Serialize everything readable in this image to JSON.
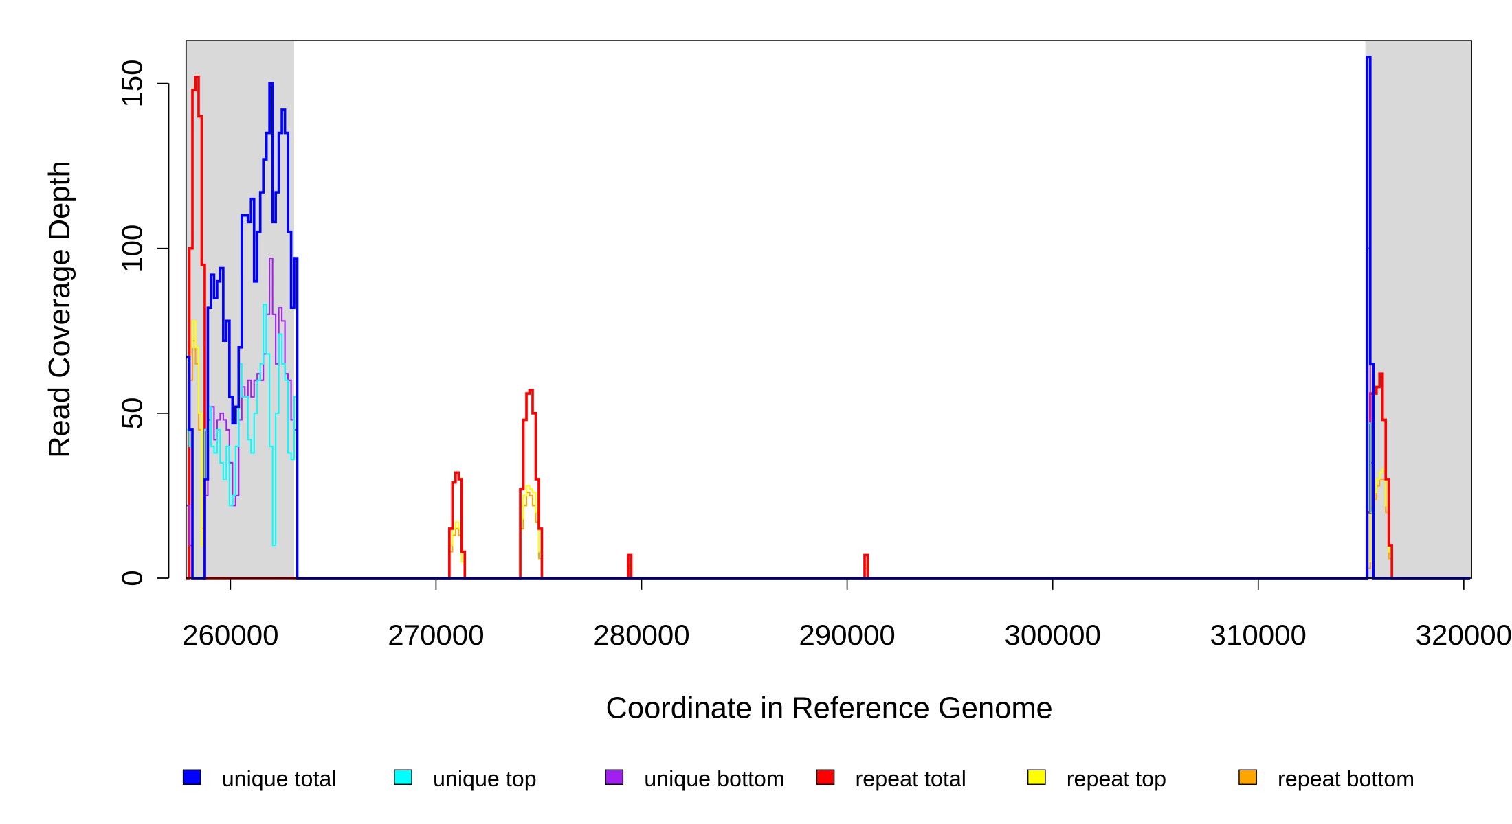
{
  "chart_data": {
    "type": "line",
    "step": true,
    "x_label": "Coordinate in Reference Genome",
    "y_label": "Read Coverage Depth",
    "xlim": [
      257842,
      320375
    ],
    "ylim": [
      0,
      163
    ],
    "xticks": [
      260000,
      270000,
      280000,
      290000,
      300000,
      310000,
      320000
    ],
    "yticks": [
      0,
      50,
      100,
      150
    ],
    "shaded_regions": [
      [
        257842,
        263100
      ],
      [
        315210,
        320375
      ]
    ],
    "shade_color": "#d9d9d9",
    "legend": "bottom",
    "x": [
      257850,
      258000,
      258150,
      258300,
      258450,
      258600,
      258750,
      258900,
      259050,
      259200,
      259350,
      259500,
      259650,
      259800,
      259950,
      260100,
      260250,
      260400,
      260550,
      260700,
      260850,
      261000,
      261150,
      261300,
      261450,
      261600,
      261750,
      261900,
      262050,
      262200,
      262350,
      262500,
      262650,
      262800,
      262950,
      263100,
      263250,
      270500,
      270650,
      270800,
      270950,
      271100,
      271250,
      271400,
      273950,
      274100,
      274250,
      274400,
      274550,
      274700,
      274850,
      275000,
      275150,
      279250,
      279350,
      279500,
      290750,
      290850,
      291000,
      315150,
      315300,
      315450,
      315600,
      315750,
      315900,
      316050,
      316200,
      316350,
      316500,
      320300
    ],
    "series": [
      {
        "name": "unique total",
        "color": "#0000ff",
        "values": [
          67,
          45,
          0,
          0,
          0,
          0,
          30,
          82,
          92,
          85,
          90,
          94,
          72,
          78,
          55,
          47,
          52,
          70,
          110,
          110,
          108,
          115,
          90,
          105,
          117,
          127,
          135,
          150,
          108,
          117,
          135,
          142,
          135,
          105,
          82,
          97,
          0,
          0,
          0,
          0,
          0,
          0,
          0,
          0,
          0,
          0,
          0,
          0,
          0,
          0,
          0,
          0,
          0,
          0,
          0,
          0,
          0,
          0,
          0,
          0,
          158,
          65,
          0,
          0,
          0,
          0,
          0,
          0,
          0,
          0
        ]
      },
      {
        "name": "unique top",
        "color": "#00ffff",
        "values": [
          45,
          40,
          0,
          0,
          0,
          0,
          45,
          52,
          40,
          38,
          45,
          35,
          30,
          40,
          22,
          25,
          40,
          65,
          55,
          55,
          42,
          38,
          50,
          60,
          65,
          83,
          68,
          40,
          10,
          50,
          74,
          65,
          60,
          38,
          36,
          55,
          0,
          0,
          0,
          0,
          0,
          0,
          0,
          0,
          0,
          0,
          0,
          0,
          0,
          0,
          0,
          0,
          0,
          0,
          0,
          0,
          0,
          0,
          0,
          0,
          47,
          20,
          0,
          0,
          0,
          0,
          0,
          0,
          0,
          0
        ]
      },
      {
        "name": "unique bottom",
        "color": "#a020f0",
        "values": [
          22,
          10,
          0,
          0,
          0,
          0,
          25,
          48,
          52,
          42,
          48,
          50,
          48,
          45,
          35,
          22,
          25,
          48,
          58,
          55,
          60,
          55,
          60,
          62,
          60,
          68,
          80,
          97,
          80,
          65,
          82,
          78,
          62,
          60,
          48,
          45,
          0,
          0,
          0,
          0,
          0,
          0,
          0,
          0,
          0,
          0,
          0,
          0,
          0,
          0,
          0,
          0,
          0,
          0,
          0,
          0,
          0,
          0,
          0,
          0,
          100,
          35,
          0,
          0,
          0,
          0,
          0,
          0,
          0,
          0
        ]
      },
      {
        "name": "repeat total",
        "color": "#ff0000",
        "values": [
          0,
          100,
          148,
          152,
          140,
          95,
          0,
          0,
          0,
          0,
          0,
          0,
          0,
          0,
          0,
          0,
          0,
          0,
          0,
          0,
          0,
          0,
          0,
          0,
          0,
          0,
          0,
          0,
          0,
          0,
          0,
          0,
          0,
          0,
          0,
          0,
          0,
          0,
          15,
          29,
          32,
          30,
          8,
          0,
          0,
          27,
          48,
          56,
          57,
          50,
          30,
          15,
          0,
          0,
          7,
          0,
          0,
          7,
          0,
          0,
          20,
          56,
          56,
          58,
          62,
          48,
          30,
          10,
          0,
          0
        ]
      },
      {
        "name": "repeat top",
        "color": "#ffff00",
        "values": [
          0,
          70,
          78,
          70,
          50,
          10,
          0,
          0,
          0,
          0,
          0,
          0,
          0,
          0,
          0,
          0,
          0,
          0,
          0,
          0,
          0,
          0,
          0,
          0,
          0,
          0,
          0,
          0,
          0,
          0,
          0,
          0,
          0,
          0,
          0,
          0,
          0,
          0,
          10,
          15,
          17,
          15,
          5,
          0,
          0,
          18,
          25,
          28,
          27,
          26,
          20,
          8,
          0,
          0,
          4,
          0,
          0,
          4,
          0,
          0,
          5,
          22,
          26,
          30,
          32,
          33,
          22,
          8,
          0,
          0
        ]
      },
      {
        "name": "repeat bottom",
        "color": "#ffa500",
        "values": [
          0,
          60,
          72,
          65,
          45,
          15,
          0,
          0,
          0,
          0,
          0,
          0,
          0,
          0,
          0,
          0,
          0,
          0,
          0,
          0,
          0,
          0,
          0,
          0,
          0,
          0,
          0,
          0,
          0,
          0,
          0,
          0,
          0,
          0,
          0,
          0,
          0,
          0,
          8,
          13,
          15,
          13,
          5,
          0,
          0,
          15,
          22,
          26,
          25,
          22,
          17,
          6,
          0,
          0,
          3,
          0,
          0,
          3,
          0,
          0,
          3,
          20,
          24,
          28,
          30,
          30,
          20,
          6,
          0,
          0
        ]
      }
    ]
  }
}
